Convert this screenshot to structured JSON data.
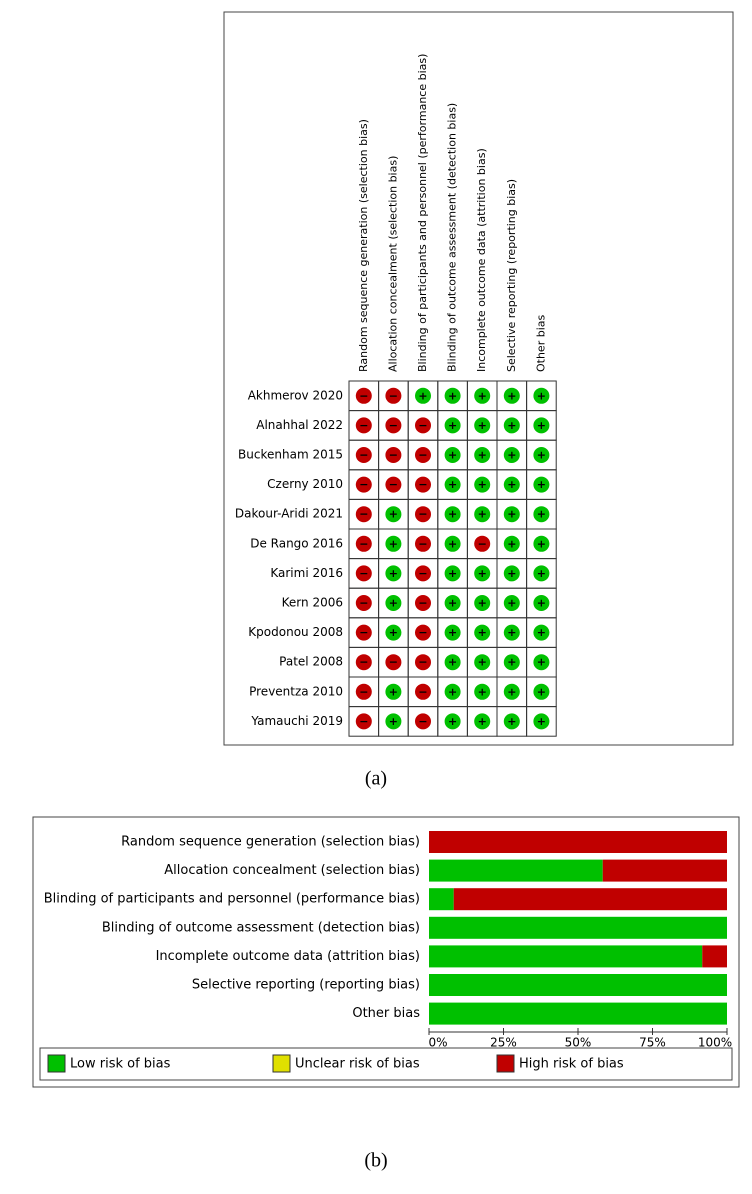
{
  "chart_data": [
    {
      "type": "traffic-light",
      "label": "(a)",
      "domains": [
        "Random sequence generation (selection bias)",
        "Allocation concealment (selection bias)",
        "Blinding of participants and personnel (performance bias)",
        "Blinding of outcome assessment (detection bias)",
        "Incomplete outcome data (attrition bias)",
        "Selective reporting (reporting bias)",
        "Other bias"
      ],
      "symbol_colors": {
        "+": "#00c000",
        "−": "#c00000"
      },
      "rows": [
        {
          "study": "Akhmerov 2020",
          "judgments": [
            "−",
            "−",
            "+",
            "+",
            "+",
            "+",
            "+"
          ]
        },
        {
          "study": "Alnahhal 2022",
          "judgments": [
            "−",
            "−",
            "−",
            "+",
            "+",
            "+",
            "+"
          ]
        },
        {
          "study": "Buckenham 2015",
          "judgments": [
            "−",
            "−",
            "−",
            "+",
            "+",
            "+",
            "+"
          ]
        },
        {
          "study": "Czerny 2010",
          "judgments": [
            "−",
            "−",
            "−",
            "+",
            "+",
            "+",
            "+"
          ]
        },
        {
          "study": "Dakour-Aridi 2021",
          "judgments": [
            "−",
            "+",
            "−",
            "+",
            "+",
            "+",
            "+"
          ]
        },
        {
          "study": "De Rango 2016",
          "judgments": [
            "−",
            "+",
            "−",
            "+",
            "−",
            "+",
            "+"
          ]
        },
        {
          "study": "Karimi 2016",
          "judgments": [
            "−",
            "+",
            "−",
            "+",
            "+",
            "+",
            "+"
          ]
        },
        {
          "study": "Kern 2006",
          "judgments": [
            "−",
            "+",
            "−",
            "+",
            "+",
            "+",
            "+"
          ]
        },
        {
          "study": "Kpodonou 2008",
          "judgments": [
            "−",
            "+",
            "−",
            "+",
            "+",
            "+",
            "+"
          ]
        },
        {
          "study": "Patel 2008",
          "judgments": [
            "−",
            "−",
            "−",
            "+",
            "+",
            "+",
            "+"
          ]
        },
        {
          "study": "Preventza 2010",
          "judgments": [
            "−",
            "+",
            "−",
            "+",
            "+",
            "+",
            "+"
          ]
        },
        {
          "study": "Yamauchi 2019",
          "judgments": [
            "−",
            "+",
            "−",
            "+",
            "+",
            "+",
            "+"
          ]
        }
      ]
    },
    {
      "type": "stacked-bar",
      "label": "(b)",
      "categories": [
        "Random sequence generation (selection bias)",
        "Allocation concealment (selection bias)",
        "Blinding of participants and personnel (performance bias)",
        "Blinding of outcome assessment (detection bias)",
        "Incomplete outcome data (attrition bias)",
        "Selective reporting (reporting bias)",
        "Other bias"
      ],
      "series": [
        {
          "name": "Low risk of bias",
          "color": "#00c000",
          "values": [
            0,
            58.3,
            8.3,
            100,
            91.7,
            100,
            100
          ]
        },
        {
          "name": "Unclear risk of bias",
          "color": "#e0e000",
          "values": [
            0,
            0,
            0,
            0,
            0,
            0,
            0
          ]
        },
        {
          "name": "High risk of bias",
          "color": "#c00000",
          "values": [
            100,
            41.7,
            91.7,
            0,
            8.3,
            0,
            0
          ]
        }
      ],
      "xlim": [
        0,
        100
      ],
      "xticks": [
        {
          "value": 0,
          "label": "0%"
        },
        {
          "value": 25,
          "label": "25%"
        },
        {
          "value": 50,
          "label": "50%"
        },
        {
          "value": 75,
          "label": "75%"
        },
        {
          "value": 100,
          "label": "100%"
        }
      ]
    }
  ]
}
